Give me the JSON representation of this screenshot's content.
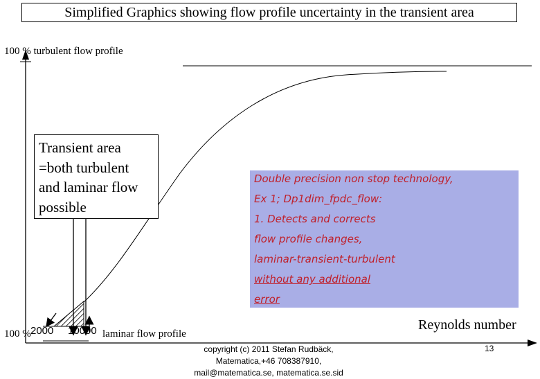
{
  "title": "Simplified Graphics showing flow profile uncertainty in the transient area",
  "top_label": "100 % turbulent flow profile",
  "transient_box": {
    "lines": [
      "Transient area",
      "=both turbulent",
      "and laminar flow",
      "possible"
    ]
  },
  "info_box": {
    "lines": [
      "Double precision non stop technology,",
      "Ex 1; Dp1dim_fpdc_flow:",
      "1. Detects and corrects",
      "flow profile changes,",
      "laminar-transient-turbulent",
      "without any additional",
      "error"
    ],
    "color": "#c0202a",
    "background": "#a9aee6"
  },
  "bottom_left_label": "100 %",
  "ticks": [
    "2000",
    "10000"
  ],
  "laminar_label": "laminar flow profile",
  "x_axis_label": "Reynolds number",
  "copyright": "copyright (c) 2011 Stefan Rudbäck, Matematica,+46 708387910, mail@matematica.se, matematica.se.sid",
  "page_number": "13"
}
